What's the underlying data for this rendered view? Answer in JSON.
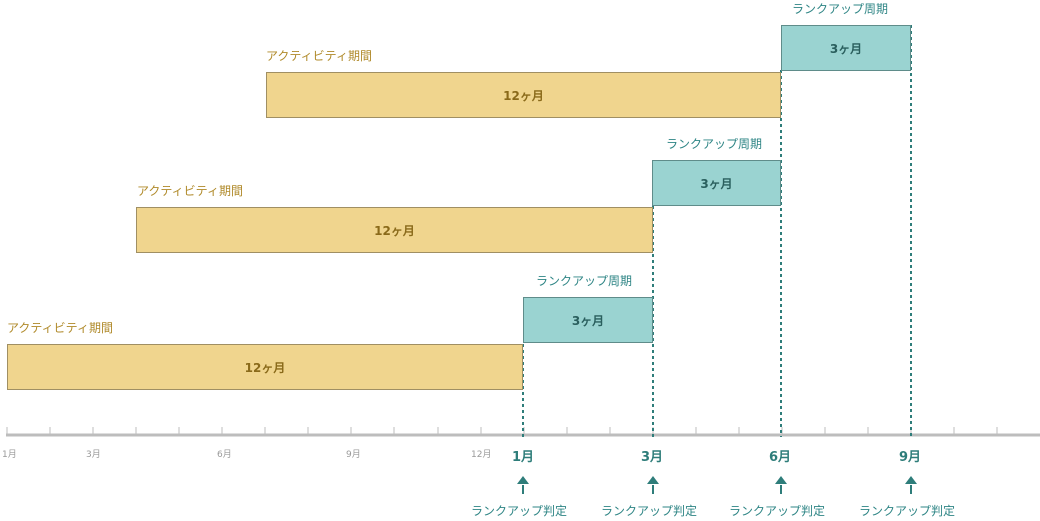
{
  "rows": [
    {
      "activity_title": "アクティビティ期間",
      "activity_bar": "12ヶ月",
      "rank_title": "ランクアップ周期",
      "rank_bar": "3ヶ月"
    },
    {
      "activity_title": "アクティビティ期間",
      "activity_bar": "12ヶ月",
      "rank_title": "ランクアップ周期",
      "rank_bar": "3ヶ月"
    },
    {
      "activity_title": "アクティビティ期間",
      "activity_bar": "12ヶ月",
      "rank_title": "ランクアップ周期",
      "rank_bar": "3ヶ月"
    }
  ],
  "axis": {
    "small_ticks": [
      "1月",
      "3月",
      "6月",
      "9月",
      "12月"
    ],
    "major_ticks": [
      "1月",
      "3月",
      "6月",
      "9月"
    ]
  },
  "judgement_label": "ランクアップ判定",
  "colors": {
    "activity_fill": "#f0d58e",
    "activity_text": "#8a6a1a",
    "rank_fill": "#9ad3d1",
    "rank_text": "#2a5f5e",
    "accent": "#2e7d7a",
    "axis": "#bdbdbd"
  }
}
